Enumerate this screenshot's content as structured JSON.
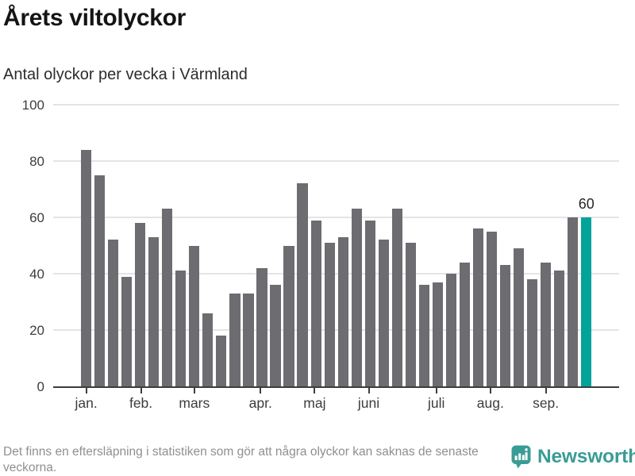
{
  "header": {
    "title": "Årets viltolyckor",
    "subtitle": "Antal olyckor per vecka i Värmland"
  },
  "chart_data": {
    "type": "bar",
    "title": "Årets viltolyckor",
    "subtitle": "Antal olyckor per vecka i Värmland",
    "description": "Antal viltolyckor per vecka i Värmland, vecka 1-38",
    "values": [
      84,
      75,
      52,
      39,
      58,
      53,
      63,
      41,
      50,
      26,
      18,
      33,
      33,
      42,
      36,
      50,
      72,
      59,
      51,
      53,
      63,
      59,
      52,
      63,
      51,
      36,
      37,
      40,
      44,
      56,
      55,
      43,
      49,
      38,
      44,
      41,
      60,
      60
    ],
    "highlight_index": 37,
    "highlight_value_label": "60",
    "ylim": [
      0,
      100
    ],
    "yticks": [
      0,
      20,
      40,
      60,
      80,
      100
    ],
    "grid": true,
    "legend": "none",
    "months": [
      {
        "label": "jan.",
        "week": 1
      },
      {
        "label": "feb.",
        "week": 5.05
      },
      {
        "label": "mars",
        "week": 9
      },
      {
        "label": "apr.",
        "week": 13.9
      },
      {
        "label": "maj",
        "week": 17.9
      },
      {
        "label": "juni",
        "week": 21.9
      },
      {
        "label": "juli",
        "week": 26.9
      },
      {
        "label": "aug.",
        "week": 30.9
      },
      {
        "label": "sep.",
        "week": 35
      }
    ],
    "colors": {
      "bar": "#6c6c71",
      "highlight": "#00a49a",
      "gridline": "#e4e4e4",
      "axis": "#3d3d3d"
    }
  },
  "footer": {
    "note": "Det finns en eftersläpning i statistiken som gör att några olyckor kan saknas de senaste veckorna.",
    "brand": "Newsworthy",
    "brand_color": "#3a9c94"
  }
}
